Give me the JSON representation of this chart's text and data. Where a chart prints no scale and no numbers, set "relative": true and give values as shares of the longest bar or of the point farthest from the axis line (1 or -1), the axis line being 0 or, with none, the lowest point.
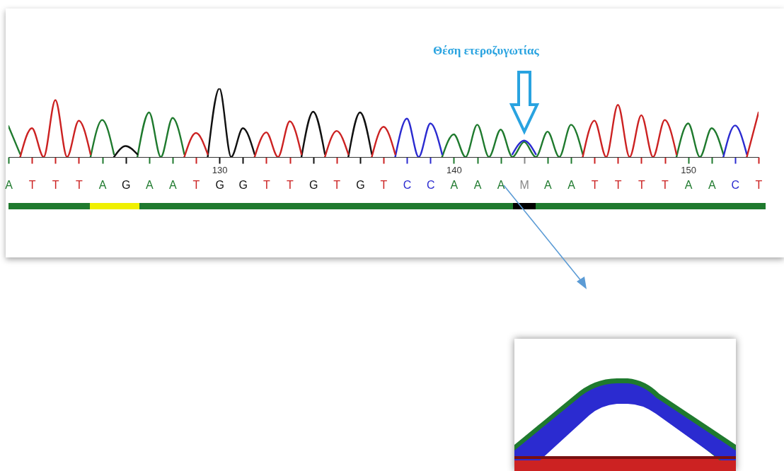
{
  "chart_data": {
    "type": "line",
    "relative": true,
    "annotations": [
      "Θέση ετεροζυγωτίας"
    ],
    "categories": [
      "A",
      null,
      "T",
      null,
      "T",
      null,
      "T",
      null,
      "A",
      null,
      "G",
      null,
      "A",
      null,
      "A",
      null,
      "T",
      null,
      "G",
      null,
      "G",
      null,
      "T",
      null,
      "T",
      null,
      "G",
      null,
      "T",
      null,
      "G",
      null,
      "T",
      null,
      "C",
      null,
      "C",
      null,
      "A",
      null,
      "A",
      null,
      "A",
      null,
      "M",
      null,
      "A",
      null,
      "A",
      null,
      "T",
      null,
      "T",
      null,
      "T",
      null,
      "T",
      null,
      "A",
      null,
      "A",
      null,
      "C",
      null,
      "T"
    ],
    "x2lim": [
      121,
      153
    ],
    "x2ticks": [
      {
        "value": 121,
        "label": null
      },
      {
        "value": 122,
        "label": null
      },
      {
        "value": 123,
        "label": null
      },
      {
        "value": 124,
        "label": null
      },
      {
        "value": 125,
        "label": null
      },
      {
        "value": 126,
        "label": null
      },
      {
        "value": 127,
        "label": null
      },
      {
        "value": 128,
        "label": null
      },
      {
        "value": 129,
        "label": null
      },
      130,
      {
        "value": 131,
        "label": null
      },
      {
        "value": 132,
        "label": null
      },
      {
        "value": 133,
        "label": null
      },
      {
        "value": 134,
        "label": null
      },
      {
        "value": 135,
        "label": null
      },
      {
        "value": 136,
        "label": null
      },
      {
        "value": 137,
        "label": null
      },
      {
        "value": 138,
        "label": null
      },
      {
        "value": 139,
        "label": null
      },
      140,
      {
        "value": 141,
        "label": null
      },
      {
        "value": 142,
        "label": null
      },
      {
        "value": 143,
        "label": null
      },
      {
        "value": 144,
        "label": null
      },
      {
        "value": 145,
        "label": null
      },
      {
        "value": 146,
        "label": null
      },
      {
        "value": 147,
        "label": null
      },
      {
        "value": 148,
        "label": null
      },
      {
        "value": 149,
        "label": null
      },
      150,
      {
        "value": 151,
        "label": null
      },
      {
        "value": 152,
        "label": null
      },
      {
        "value": 153,
        "label": null
      }
    ],
    "series": [
      {
        "color": "#1f7a2e",
        "values": [
          0.45,
          0.04,
          null,
          null,
          null,
          null,
          null,
          0,
          0.54,
          0.04,
          null,
          0,
          0.65,
          0,
          0.57,
          0.04,
          null,
          null,
          null,
          null,
          null,
          null,
          null,
          null,
          null,
          null,
          null,
          null,
          null,
          null,
          null,
          null,
          null,
          null,
          null,
          null,
          null,
          0,
          0.33,
          0,
          0.47,
          0,
          0.4,
          0,
          0.22,
          0,
          0.37,
          0,
          0.47,
          0.04,
          null,
          null,
          null,
          null,
          null,
          null,
          null,
          0,
          0.49,
          0,
          0.42,
          0.04,
          null,
          null,
          null
        ]
      },
      {
        "color": "#2b2bd0",
        "values": [
          null,
          null,
          null,
          null,
          null,
          null,
          null,
          null,
          null,
          null,
          null,
          null,
          null,
          null,
          null,
          null,
          null,
          null,
          null,
          null,
          null,
          null,
          null,
          null,
          null,
          null,
          null,
          null,
          null,
          null,
          null,
          null,
          null,
          0,
          0.56,
          0,
          0.49,
          0.04,
          null,
          null,
          null,
          null,
          null,
          0.04,
          0.24,
          0.04,
          null,
          null,
          null,
          null,
          null,
          null,
          null,
          null,
          null,
          null,
          null,
          null,
          null,
          null,
          null,
          0,
          0.46,
          0.04,
          null
        ]
      },
      {
        "color": "#111111",
        "values": [
          null,
          null,
          null,
          null,
          null,
          null,
          null,
          null,
          null,
          0,
          0.16,
          0.04,
          null,
          null,
          null,
          null,
          null,
          0,
          1,
          0,
          0.42,
          0.04,
          null,
          null,
          null,
          0,
          0.66,
          0.04,
          null,
          0,
          0.65,
          0.04,
          null,
          null,
          null,
          null,
          null,
          null,
          null,
          null,
          null,
          null,
          null,
          null,
          null,
          null,
          null,
          null,
          null,
          null,
          null,
          null,
          null,
          null,
          null,
          null,
          null,
          null,
          null,
          null,
          null,
          null,
          null,
          null,
          null
        ]
      },
      {
        "color": "#cc2222",
        "values": [
          null,
          0,
          0.42,
          0,
          0.83,
          0,
          0.53,
          0.04,
          null,
          null,
          null,
          null,
          null,
          null,
          null,
          0,
          0.35,
          0.04,
          null,
          null,
          null,
          0,
          0.36,
          0,
          0.52,
          0.04,
          null,
          0,
          0.38,
          0.04,
          null,
          0,
          0.44,
          0.04,
          null,
          null,
          null,
          null,
          null,
          null,
          null,
          null,
          null,
          null,
          null,
          null,
          null,
          null,
          null,
          0,
          0.53,
          0,
          0.76,
          0,
          0.61,
          0,
          0.54,
          0.04,
          null,
          null,
          null,
          null,
          null,
          0,
          0.65
        ]
      }
    ],
    "grid": false,
    "legend": false
  }
}
